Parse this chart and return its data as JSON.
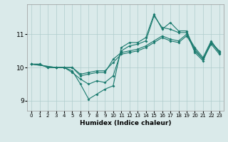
{
  "xlabel": "Humidex (Indice chaleur)",
  "bg_color": "#daeaea",
  "grid_color": "#b0cccc",
  "line_color": "#1a7a6e",
  "xlim": [
    -0.5,
    23.5
  ],
  "ylim": [
    8.7,
    11.9
  ],
  "xticks": [
    0,
    1,
    2,
    3,
    4,
    5,
    6,
    7,
    8,
    9,
    10,
    11,
    12,
    13,
    14,
    15,
    16,
    17,
    18,
    19,
    20,
    21,
    22,
    23
  ],
  "yticks": [
    9,
    10,
    11
  ],
  "lines": [
    {
      "x": [
        0,
        1,
        2,
        3,
        4,
        5,
        6,
        7,
        8,
        9,
        10,
        11,
        12,
        13,
        14,
        15,
        16,
        17,
        18,
        19,
        20,
        21,
        22,
        23
      ],
      "y": [
        10.1,
        10.1,
        10.0,
        10.0,
        10.0,
        9.9,
        9.5,
        9.05,
        9.2,
        9.35,
        9.45,
        10.6,
        10.75,
        10.75,
        10.9,
        11.6,
        11.15,
        11.35,
        11.1,
        11.1,
        10.5,
        10.25,
        10.75,
        10.5
      ]
    },
    {
      "x": [
        0,
        1,
        2,
        3,
        4,
        5,
        6,
        7,
        8,
        9,
        10,
        11,
        12,
        13,
        14,
        15,
        16,
        17,
        18,
        19,
        20,
        21,
        22,
        23
      ],
      "y": [
        10.1,
        10.1,
        10.0,
        10.0,
        10.0,
        9.85,
        9.65,
        9.5,
        9.6,
        9.55,
        9.75,
        10.5,
        10.65,
        10.7,
        10.8,
        11.55,
        11.2,
        11.15,
        11.05,
        11.05,
        10.45,
        10.2,
        10.75,
        10.45
      ]
    },
    {
      "x": [
        0,
        3,
        4,
        5,
        6,
        7,
        8,
        9,
        10,
        11,
        12,
        13,
        14,
        15,
        16,
        17,
        18,
        19,
        20,
        21,
        22,
        23
      ],
      "y": [
        10.1,
        10.0,
        10.0,
        10.0,
        9.75,
        9.8,
        9.85,
        9.85,
        10.25,
        10.45,
        10.5,
        10.55,
        10.65,
        10.8,
        10.95,
        10.85,
        10.8,
        11.0,
        10.6,
        10.3,
        10.8,
        10.45
      ]
    },
    {
      "x": [
        0,
        3,
        4,
        5,
        6,
        7,
        8,
        9,
        10,
        11,
        12,
        13,
        14,
        15,
        16,
        17,
        18,
        19,
        20,
        21,
        22,
        23
      ],
      "y": [
        10.1,
        10.0,
        10.0,
        10.0,
        9.8,
        9.85,
        9.9,
        9.9,
        10.15,
        10.4,
        10.45,
        10.5,
        10.6,
        10.75,
        10.9,
        10.8,
        10.75,
        10.95,
        10.55,
        10.25,
        10.7,
        10.4
      ]
    }
  ]
}
